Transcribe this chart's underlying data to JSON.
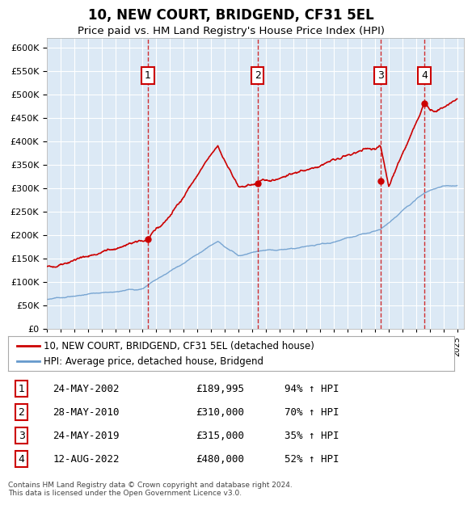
{
  "title": "10, NEW COURT, BRIDGEND, CF31 5EL",
  "subtitle": "Price paid vs. HM Land Registry's House Price Index (HPI)",
  "ylabel": "",
  "ylim": [
    0,
    620000
  ],
  "yticks": [
    0,
    50000,
    100000,
    150000,
    200000,
    250000,
    300000,
    350000,
    400000,
    450000,
    500000,
    550000,
    600000
  ],
  "background_color": "#dce9f5",
  "plot_bg": "#dce9f5",
  "grid_color": "#ffffff",
  "red_line_color": "#cc0000",
  "blue_line_color": "#6699cc",
  "sale_marker_color": "#cc0000",
  "vline_color": "#cc0000",
  "box_color": "#cc0000",
  "sales": [
    {
      "num": 1,
      "date": "24-MAY-2002",
      "price": 189995,
      "pct": "94%",
      "x_year": 2002.38
    },
    {
      "num": 2,
      "date": "28-MAY-2010",
      "price": 310000,
      "pct": "70%",
      "x_year": 2010.41
    },
    {
      "num": 3,
      "date": "24-MAY-2019",
      "price": 315000,
      "pct": "35%",
      "x_year": 2019.39
    },
    {
      "num": 4,
      "date": "12-AUG-2022",
      "price": 480000,
      "pct": "52%",
      "x_year": 2022.61
    }
  ],
  "legend_entries": [
    "10, NEW COURT, BRIDGEND, CF31 5EL (detached house)",
    "HPI: Average price, detached house, Bridgend"
  ],
  "footer": "Contains HM Land Registry data © Crown copyright and database right 2024.\nThis data is licensed under the Open Government Licence v3.0.",
  "xmin": 1995.0,
  "xmax": 2025.5
}
